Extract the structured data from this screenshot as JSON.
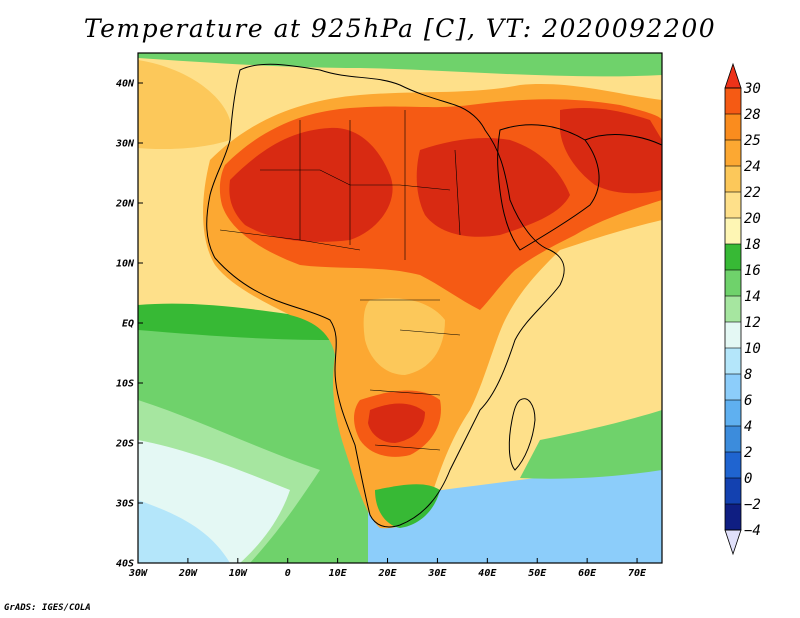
{
  "title": "Temperature at 925hPa [C], VT: 2020092200",
  "credit": "GrADS: IGES/COLA",
  "map": {
    "projection": "latlon",
    "lon_range": [
      -30,
      75
    ],
    "lat_range": [
      -40,
      45
    ],
    "lon_ticks": [
      {
        "value": -30,
        "label": "30W"
      },
      {
        "value": -20,
        "label": "20W"
      },
      {
        "value": -10,
        "label": "10W"
      },
      {
        "value": 0,
        "label": "0"
      },
      {
        "value": 10,
        "label": "10E"
      },
      {
        "value": 20,
        "label": "20E"
      },
      {
        "value": 30,
        "label": "30E"
      },
      {
        "value": 40,
        "label": "40E"
      },
      {
        "value": 50,
        "label": "50E"
      },
      {
        "value": 60,
        "label": "60E"
      },
      {
        "value": 70,
        "label": "70E"
      }
    ],
    "lat_ticks": [
      {
        "value": 40,
        "label": "40N"
      },
      {
        "value": 30,
        "label": "30N"
      },
      {
        "value": 20,
        "label": "20N"
      },
      {
        "value": 10,
        "label": "10N"
      },
      {
        "value": 0,
        "label": "EQ"
      },
      {
        "value": -10,
        "label": "10S"
      },
      {
        "value": -20,
        "label": "20S"
      },
      {
        "value": -30,
        "label": "30S"
      },
      {
        "value": -40,
        "label": "40S"
      }
    ]
  },
  "colorbar": {
    "levels": [
      30,
      28,
      25,
      24,
      22,
      20,
      18,
      16,
      14,
      12,
      10,
      8,
      6,
      4,
      2,
      0,
      -2,
      -4
    ],
    "colors_top_to_bottom": [
      "#ed3219",
      "#f55a14",
      "#fa8c1e",
      "#fca832",
      "#fcc85a",
      "#fee08a",
      "#fef6b4",
      "#37b935",
      "#6fd26b",
      "#a6e6a0",
      "#e4f8f4",
      "#b4e6fa",
      "#8ccdfa",
      "#5fb0f0",
      "#3c8cdc",
      "#1f64d0",
      "#1341b0",
      "#0f1e82",
      "#e0e0fa"
    ]
  },
  "color_key": {
    "ocean_cold": "#b4e6fa",
    "ocean_cool": "#6fd26b",
    "ocean_mild": "#fef6b4",
    "land_warm": "#fca832",
    "land_hot": "#f55a14",
    "land_hottest": "#d82a12"
  }
}
